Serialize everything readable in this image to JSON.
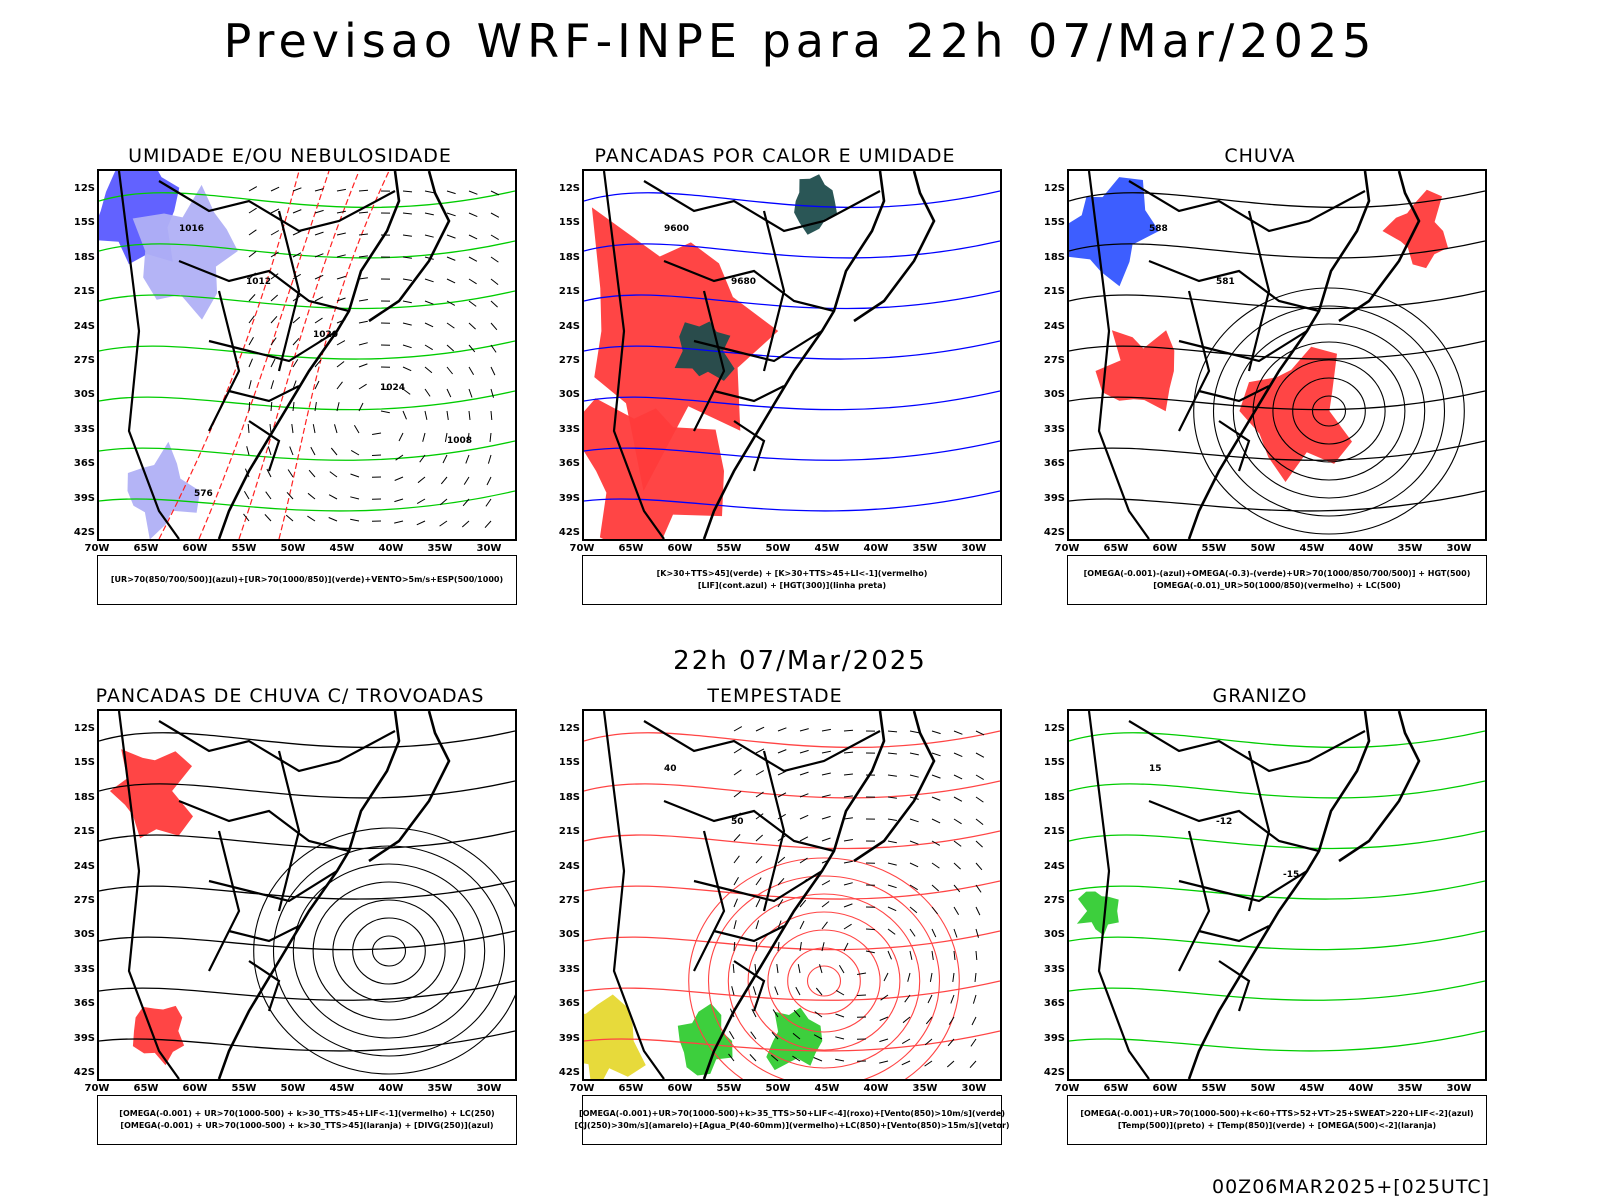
{
  "title": "Previsao WRF-INPE  para 22h 07/Mar/2025",
  "mid_title": "22h 07/Mar/2025",
  "footer_run": "00Z06MAR2025+[025UTC]",
  "lat_labels": [
    "12S",
    "15S",
    "18S",
    "21S",
    "24S",
    "27S",
    "30S",
    "33S",
    "36S",
    "39S",
    "42S"
  ],
  "lon_labels": [
    "70W",
    "65W",
    "60W",
    "55W",
    "50W",
    "45W",
    "40W",
    "35W",
    "30W"
  ],
  "panels": [
    {
      "title": "UMIDADE E/OU NEBULOSIDADE",
      "legend": [
        "[UR>70(850/700/500)](azul)+[UR>70(1000/850)](verde)+VENTO>5m/s+ESP(500/1000)"
      ],
      "contour_labels": [
        "1016",
        "1012",
        "1020",
        "1024",
        "1008",
        "576"
      ]
    },
    {
      "title": "PANCADAS POR CALOR E UMIDADE",
      "legend": [
        "[K>30+TTS>45](verde) + [K>30+TTS>45+LI<-1](vermelho)",
        "[LIF](cont.azul) + [HGT(300)](linha preta)"
      ],
      "contour_labels": [
        "9600",
        "9680"
      ]
    },
    {
      "title": "CHUVA",
      "legend": [
        "[OMEGA(-0.001)-(azul)+OMEGA(-0.3)-(verde)+UR>70(1000/850/700/500)] + HGT(500)",
        "[OMEGA(-0.01)_UR>50(1000/850)(vermelho) + LC(500)"
      ],
      "contour_labels": [
        "588",
        "581"
      ]
    },
    {
      "title": "PANCADAS DE CHUVA C/ TROVOADAS",
      "legend": [
        "[OMEGA(-0.001) + UR>70(1000-500) + k>30_TTS>45+LIF<-1](vermelho) + LC(250)",
        "[OMEGA(-0.001) + UR>70(1000-500) + k>30_TTS>45](laranja) + [DIVG(250)](azul)"
      ],
      "contour_labels": []
    },
    {
      "title": "TEMPESTADE",
      "legend": [
        "[OMEGA(-0.001)+UR>70(1000-500)+k>35_TTS>50+LIF<-4](roxo)+[Vento(850)>10m/s](verde)",
        "[CJ(250)>30m/s](amarelo)+[Agua_P(40-60mm)](vermelho)+LC(850)+[Vento(850)>15m/s](vetor)"
      ],
      "contour_labels": [
        "40",
        "50"
      ]
    },
    {
      "title": "GRANIZO",
      "legend": [
        "[OMEGA(-0.001)+UR>70(1000-500)+k<60+TTS>52+VT>25+SWEAT>220+LIF<-2](azul)",
        "[Temp(500)](preto) + [Temp(850)](verde) + [OMEGA(500)<-2](laranja)"
      ],
      "contour_labels": [
        "15",
        "-12",
        "-15"
      ]
    }
  ]
}
